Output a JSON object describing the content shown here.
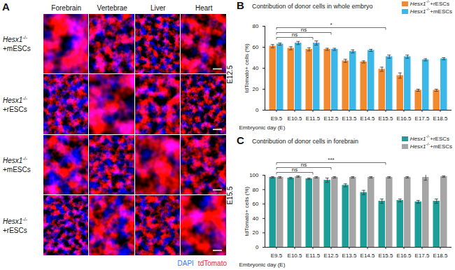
{
  "panel_a": {
    "panel_label": "A",
    "columns": [
      "Forebrain",
      "Vertebrae",
      "Liver",
      "Heart"
    ],
    "rows": [
      {
        "label": "Hesx1-/-+mESCs",
        "stage": "E12.5"
      },
      {
        "label": "Hesx1-/-+rESCs",
        "stage": "E12.5"
      },
      {
        "label": "Hesx1-/-+mESCs",
        "stage": "E15.5"
      },
      {
        "label": "Hesx1-/-+rESCs",
        "stage": "E15.5"
      }
    ],
    "channels": [
      {
        "name": "DAPI",
        "color": "#3a7bf0"
      },
      {
        "name": "tdTomato",
        "color": "#e8283c"
      }
    ]
  },
  "chart_data": [
    {
      "type": "bar",
      "panel_label": "B",
      "title": "Contribution of donor cells in whole embryo",
      "x_label": "Embryonic day (E)",
      "y_label": "tdTomato+ cells (%)",
      "categories": [
        "E9.5",
        "E10.5",
        "E11.5",
        "E12.5",
        "E13.5",
        "E14.5",
        "E15.5",
        "E16.5",
        "E17.5",
        "E18.5"
      ],
      "series": [
        {
          "name": "Hesx1-/-+rESCs",
          "color": "#f28a30",
          "values": [
            61,
            59,
            58,
            58,
            47,
            46,
            39,
            33,
            19,
            19
          ],
          "errors": [
            1.5,
            1.5,
            1.5,
            1,
            1.5,
            1,
            2,
            2.5,
            1,
            1
          ]
        },
        {
          "name": "Hesx1-/-+mESCs",
          "color": "#3cb8e8",
          "values": [
            63,
            64,
            64,
            58,
            56,
            57,
            51,
            51,
            48,
            49
          ],
          "errors": [
            1,
            1.5,
            2,
            1,
            1.5,
            1,
            1.5,
            1.5,
            1,
            1
          ]
        }
      ],
      "ylim": [
        0,
        80
      ],
      "yticks": [
        0,
        20,
        40,
        60,
        80
      ],
      "legend": "top-right",
      "annotations": [
        {
          "text": "ns",
          "from": "E9.5",
          "to": "E11.5"
        },
        {
          "text": "ns",
          "from": "E9.5",
          "to": "E12.5"
        },
        {
          "text": "*",
          "from": "E9.5",
          "to": "E15.5"
        }
      ]
    },
    {
      "type": "bar",
      "panel_label": "C",
      "title": "Contribution of donor cells in forebrain",
      "x_label": "Embryonic day (E)",
      "y_label": "tdTomato+ cells (%)",
      "categories": [
        "E9.5",
        "E10.5",
        "E11.5",
        "E12.5",
        "E13.5",
        "E14.5",
        "E15.5",
        "E16.5",
        "E17.5",
        "E18.5"
      ],
      "series": [
        {
          "name": "Hesx1-/-+rESCs",
          "color": "#1e9e98",
          "values": [
            97,
            96,
            95,
            93,
            86,
            76,
            64,
            65,
            63,
            64
          ],
          "errors": [
            1,
            1,
            1,
            3,
            2,
            3,
            3,
            2,
            2,
            3
          ]
        },
        {
          "name": "Hesx1-/-+mESCs",
          "color": "#a6a6a6",
          "values": [
            97,
            98,
            97,
            97,
            97,
            97,
            97,
            97,
            97,
            98
          ],
          "errors": [
            1,
            1,
            1,
            1,
            1,
            1,
            1,
            1,
            4,
            1
          ]
        }
      ],
      "ylim": [
        0,
        100
      ],
      "yticks": [
        0,
        20,
        40,
        60,
        80,
        100
      ],
      "legend": "top-right",
      "annotations": [
        {
          "text": "ns",
          "from": "E9.5",
          "to": "E11.5"
        },
        {
          "text": "ns",
          "from": "E9.5",
          "to": "E12.5"
        },
        {
          "text": "***",
          "from": "E9.5",
          "to": "E15.5"
        }
      ]
    }
  ]
}
